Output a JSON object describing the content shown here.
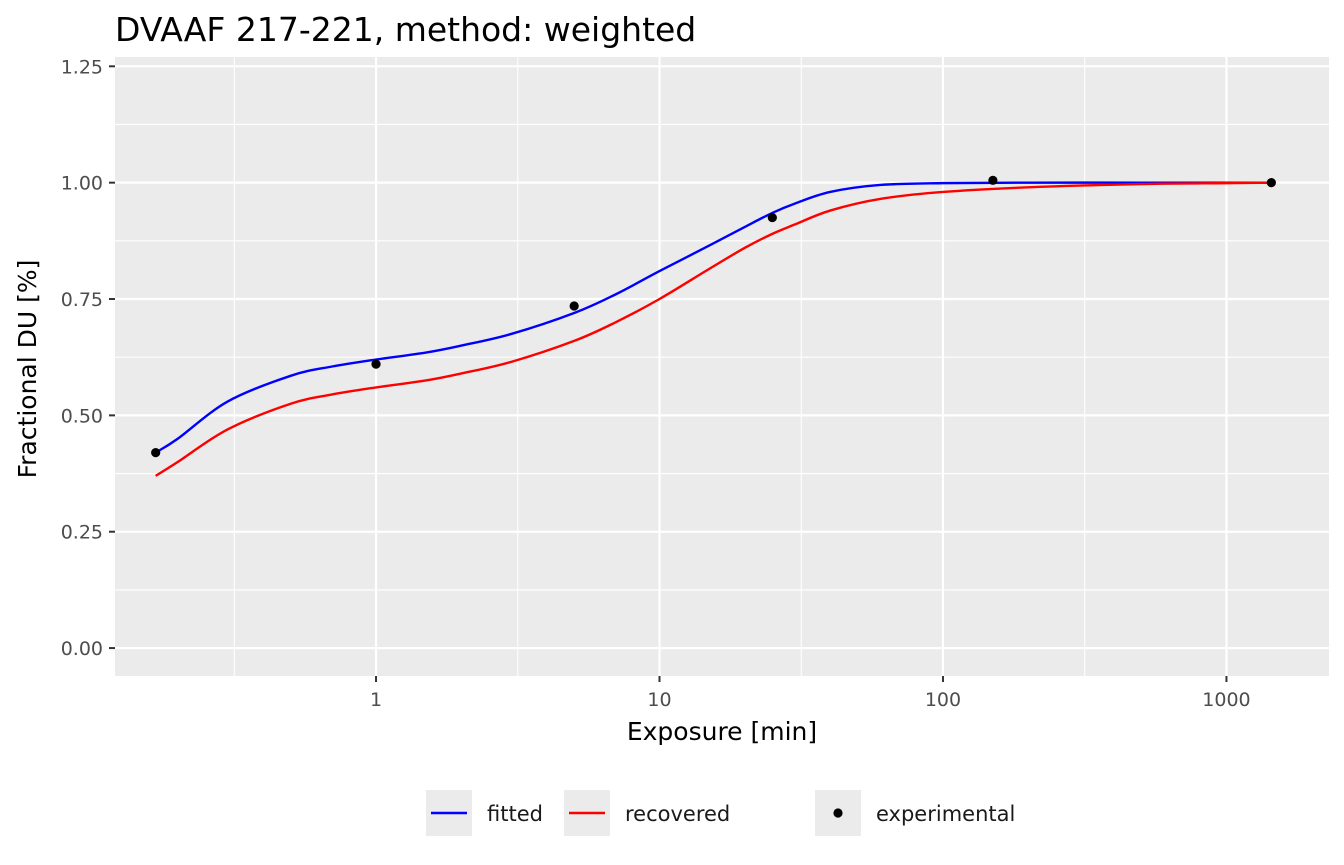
{
  "chart_data": {
    "type": "line",
    "title": "DVAAF 217-221, method: weighted",
    "xlabel": "Exposure [min]",
    "ylabel": "Fractional DU [%]",
    "x_scale": "log10",
    "xlim": [
      0.12,
      2300
    ],
    "ylim": [
      -0.06,
      1.27
    ],
    "x_ticks": [
      1,
      10,
      100,
      1000
    ],
    "x_tick_labels": [
      "1",
      "10",
      "100",
      "1000"
    ],
    "y_ticks": [
      0,
      0.25,
      0.5,
      0.75,
      1.0,
      1.25
    ],
    "y_tick_labels": [
      "0.00",
      "0.25",
      "0.50",
      "0.75",
      "1.00",
      "1.25"
    ],
    "grid": true,
    "legend_position": "bottom",
    "series": [
      {
        "name": "fitted",
        "kind": "line",
        "color": "#0000ff",
        "x": [
          0.167,
          0.2,
          0.3,
          0.5,
          0.7,
          1,
          1.5,
          2,
          3,
          5,
          7,
          10,
          15,
          20,
          25,
          30,
          40,
          60,
          100,
          200,
          500,
          1000,
          1440
        ],
        "y": [
          0.42,
          0.45,
          0.53,
          0.585,
          0.605,
          0.62,
          0.635,
          0.65,
          0.675,
          0.72,
          0.76,
          0.81,
          0.865,
          0.905,
          0.935,
          0.955,
          0.98,
          0.995,
          0.999,
          1.0,
          1.0,
          1.0,
          1.0
        ]
      },
      {
        "name": "recovered",
        "kind": "line",
        "color": "#ff0000",
        "x": [
          0.167,
          0.2,
          0.3,
          0.5,
          0.7,
          1,
          1.5,
          2,
          3,
          5,
          7,
          10,
          15,
          20,
          25,
          30,
          40,
          60,
          100,
          200,
          500,
          1000,
          1440
        ],
        "y": [
          0.37,
          0.4,
          0.47,
          0.525,
          0.545,
          0.56,
          0.575,
          0.59,
          0.615,
          0.66,
          0.7,
          0.75,
          0.815,
          0.86,
          0.89,
          0.91,
          0.94,
          0.965,
          0.98,
          0.99,
          0.997,
          0.999,
          1.0
        ]
      },
      {
        "name": "experimental",
        "kind": "points",
        "color": "#000000",
        "x": [
          0.167,
          1,
          5,
          25,
          150,
          1440
        ],
        "y": [
          0.42,
          0.61,
          0.735,
          0.925,
          1.005,
          1.0
        ]
      }
    ]
  }
}
